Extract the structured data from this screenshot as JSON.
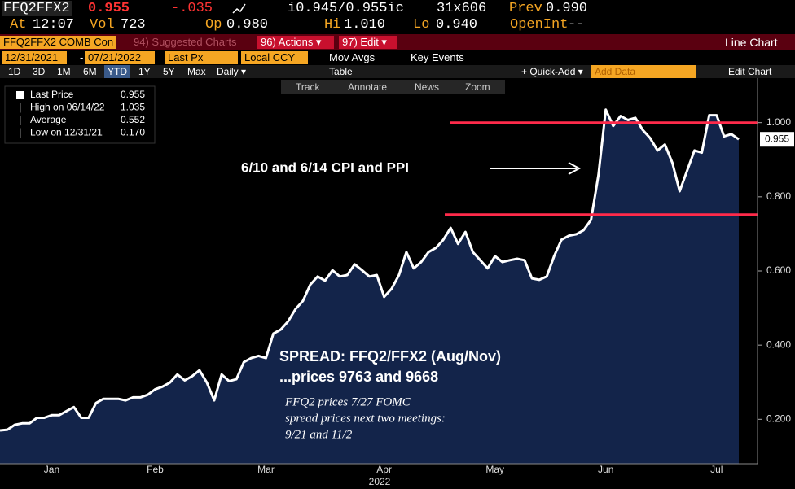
{
  "header": {
    "ticker": "FFQ2FFX2",
    "last": "0.955",
    "change": "-.035",
    "bid_ask": "i0.945/0.955ic",
    "size": "31x606",
    "prev_label": "Prev",
    "prev_value": "0.990",
    "row2": [
      {
        "label": "At",
        "value": "12:07"
      },
      {
        "label": "Vol",
        "value": "723"
      },
      {
        "label": "Op",
        "value": "0.980"
      },
      {
        "label": "Hi",
        "value": "1.010"
      },
      {
        "label": "Lo",
        "value": "0.940"
      },
      {
        "label": "OpenInt",
        "value": "--"
      }
    ]
  },
  "menu": {
    "security": "FFQ2FFX2 COMB Con",
    "suggested": "94) Suggested Charts",
    "actions": "96) Actions ▾",
    "edit": "97) Edit ▾",
    "chart_type": "Line Chart"
  },
  "settings": {
    "start": "12/31/2021",
    "dash": "-",
    "end": "07/21/2022",
    "field": "Last Px",
    "currency": "Local CCY",
    "mov_avgs": "Mov Avgs",
    "key_events": "Key Events"
  },
  "toolbar": {
    "periods": [
      "1D",
      "3D",
      "1M",
      "6M",
      "YTD",
      "1Y",
      "5Y",
      "Max"
    ],
    "frequency": "Daily ▾",
    "table": "Table",
    "quick_add": "+ Quick-Add ▾",
    "add_data": "Add Data",
    "edit_chart": "Edit Chart",
    "tools": [
      "Track",
      "Annotate",
      "News",
      "Zoom"
    ]
  },
  "chart_data": {
    "type": "line",
    "legend": [
      {
        "name": "Last Price",
        "value": "0.955"
      },
      {
        "name": "High on 06/14/22",
        "value": "1.035"
      },
      {
        "name": "Average",
        "value": "0.552"
      },
      {
        "name": "Low on 12/31/21",
        "value": "0.170"
      }
    ],
    "categories": [
      null,
      null,
      null,
      null,
      null,
      null,
      null,
      "Jan",
      null,
      null,
      null,
      null,
      null,
      null,
      null,
      null,
      null,
      null,
      null,
      null,
      null,
      "Feb",
      null,
      null,
      null,
      null,
      null,
      null,
      null,
      null,
      null,
      null,
      null,
      null,
      null,
      null,
      "Mar",
      null,
      null,
      null,
      null,
      null,
      null,
      null,
      null,
      null,
      null,
      null,
      null,
      null,
      null,
      null,
      "Apr",
      null,
      null,
      null,
      null,
      null,
      null,
      null,
      null,
      null,
      null,
      null,
      null,
      null,
      null,
      "May",
      null,
      null,
      null,
      null,
      null,
      null,
      null,
      null,
      null,
      null,
      null,
      null,
      null,
      null,
      "Jun",
      null,
      null,
      null,
      null,
      null,
      null,
      null,
      null,
      null,
      null,
      null,
      null,
      null,
      null,
      "Jul",
      null,
      null,
      null
    ],
    "x_label": "2022",
    "series": [
      {
        "name": "Last Price",
        "color": "#ffffff",
        "fill": "#13244a",
        "values": [
          0.17,
          0.172,
          0.185,
          0.189,
          0.189,
          0.204,
          0.204,
          0.211,
          0.211,
          0.222,
          0.233,
          0.204,
          0.204,
          0.244,
          0.255,
          0.255,
          0.255,
          0.251,
          0.259,
          0.259,
          0.266,
          0.281,
          0.288,
          0.299,
          0.321,
          0.305,
          0.316,
          0.332,
          0.299,
          0.251,
          0.321,
          0.303,
          0.308,
          0.354,
          0.365,
          0.371,
          0.365,
          0.431,
          0.442,
          0.464,
          0.497,
          0.519,
          0.563,
          0.585,
          0.574,
          0.602,
          0.585,
          0.589,
          0.618,
          0.602,
          0.585,
          0.589,
          0.53,
          0.552,
          0.589,
          0.651,
          0.607,
          0.624,
          0.651,
          0.662,
          0.684,
          0.716,
          0.673,
          0.705,
          0.651,
          0.629,
          0.607,
          0.64,
          0.624,
          0.629,
          0.633,
          0.629,
          0.58,
          0.576,
          0.585,
          0.64,
          0.684,
          0.695,
          0.699,
          0.71,
          0.738,
          0.859,
          1.035,
          0.991,
          1.018,
          1.007,
          1.013,
          0.98,
          0.958,
          0.925,
          0.941,
          0.892,
          0.815,
          0.87,
          0.925,
          0.919,
          1.02,
          1.02,
          0.963,
          0.969,
          0.955
        ]
      }
    ],
    "ylim": [
      0.08,
      1.12
    ],
    "yticks": [
      {
        "value": 0.2,
        "label": "0.200"
      },
      {
        "value": 0.4,
        "label": "0.400"
      },
      {
        "value": 0.6,
        "label": "0.600"
      },
      {
        "value": 0.8,
        "label": "0.800"
      },
      {
        "value": 1.0,
        "label": "1.000"
      }
    ],
    "last_marker": {
      "value": 0.955,
      "label": "0.955"
    },
    "hlines": [
      {
        "value": 1.0,
        "color": "#ff2a4a"
      },
      {
        "value": 0.752,
        "color": "#ff2a4a"
      }
    ],
    "annotations": {
      "event": "6/10 and 6/14 CPI and PPI",
      "spread": [
        "SPREAD: FFQ2/FFX2 (Aug/Nov)",
        "...prices 9763 and 9668"
      ],
      "note": [
        "FFQ2 prices 7/27 FOMC",
        "spread prices next two meetings:",
        "9/21 and 11/2"
      ]
    }
  }
}
